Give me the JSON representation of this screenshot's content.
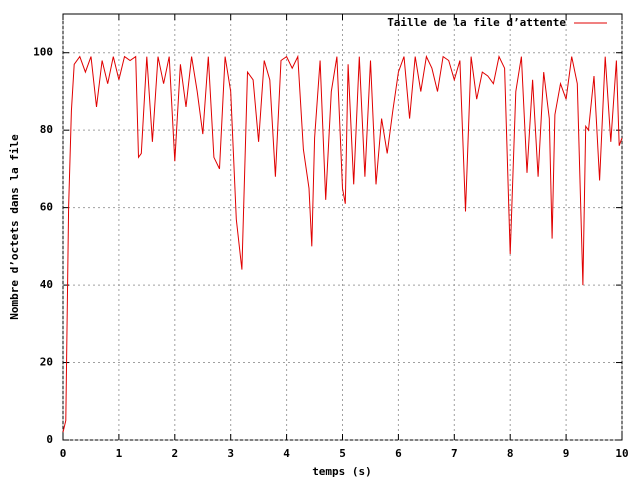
{
  "chart_data": {
    "type": "line",
    "xlabel": "temps (s)",
    "ylabel": "Nombre d’octets dans la file",
    "x": [
      0,
      0.05,
      0.1,
      0.15,
      0.2,
      0.3,
      0.4,
      0.5,
      0.6,
      0.7,
      0.8,
      0.9,
      1.0,
      1.1,
      1.2,
      1.3,
      1.35,
      1.4,
      1.5,
      1.6,
      1.7,
      1.8,
      1.9,
      2.0,
      2.1,
      2.2,
      2.3,
      2.4,
      2.5,
      2.6,
      2.7,
      2.8,
      2.9,
      3.0,
      3.1,
      3.2,
      3.3,
      3.4,
      3.5,
      3.6,
      3.7,
      3.8,
      3.9,
      4.0,
      4.1,
      4.2,
      4.3,
      4.4,
      4.45,
      4.5,
      4.6,
      4.7,
      4.8,
      4.9,
      5.0,
      5.05,
      5.1,
      5.2,
      5.3,
      5.4,
      5.5,
      5.6,
      5.7,
      5.8,
      5.9,
      6.0,
      6.1,
      6.2,
      6.3,
      6.4,
      6.5,
      6.6,
      6.7,
      6.8,
      6.9,
      7.0,
      7.1,
      7.2,
      7.3,
      7.4,
      7.5,
      7.6,
      7.7,
      7.8,
      7.9,
      8.0,
      8.1,
      8.2,
      8.3,
      8.4,
      8.5,
      8.6,
      8.7,
      8.75,
      8.8,
      8.9,
      9.0,
      9.1,
      9.2,
      9.3,
      9.35,
      9.4,
      9.5,
      9.6,
      9.7,
      9.8,
      9.9,
      9.95,
      10
    ],
    "series": [
      {
        "name": "Taille de la file d’attente",
        "color": "#e00000",
        "values": [
          2,
          5,
          60,
          85,
          97,
          99,
          95,
          99,
          86,
          98,
          92,
          99,
          93,
          99,
          98,
          99,
          73,
          74,
          99,
          77,
          99,
          92,
          99,
          72,
          97,
          86,
          99,
          90,
          79,
          99,
          73,
          70,
          99,
          90,
          57,
          44,
          95,
          93,
          77,
          98,
          93,
          68,
          98,
          99,
          96,
          99,
          75,
          65,
          50,
          78,
          98,
          62,
          90,
          99,
          65,
          61,
          97,
          66,
          99,
          68,
          98,
          66,
          83,
          74,
          85,
          95,
          99,
          83,
          99,
          90,
          99,
          96,
          90,
          99,
          98,
          93,
          98,
          59,
          99,
          88,
          95,
          94,
          92,
          99,
          96,
          48,
          90,
          99,
          69,
          93,
          68,
          95,
          83,
          52,
          84,
          92,
          88,
          99,
          92,
          40,
          81,
          80,
          94,
          67,
          99,
          77,
          98,
          76,
          78
        ]
      }
    ],
    "xlim": [
      0,
      10
    ],
    "xticks": [
      0,
      1,
      2,
      3,
      4,
      5,
      6,
      7,
      8,
      9,
      10
    ],
    "ylim": [
      0,
      110
    ],
    "yticks": [
      0,
      20,
      40,
      60,
      80,
      100
    ],
    "grid": true,
    "legend": "top-right"
  }
}
